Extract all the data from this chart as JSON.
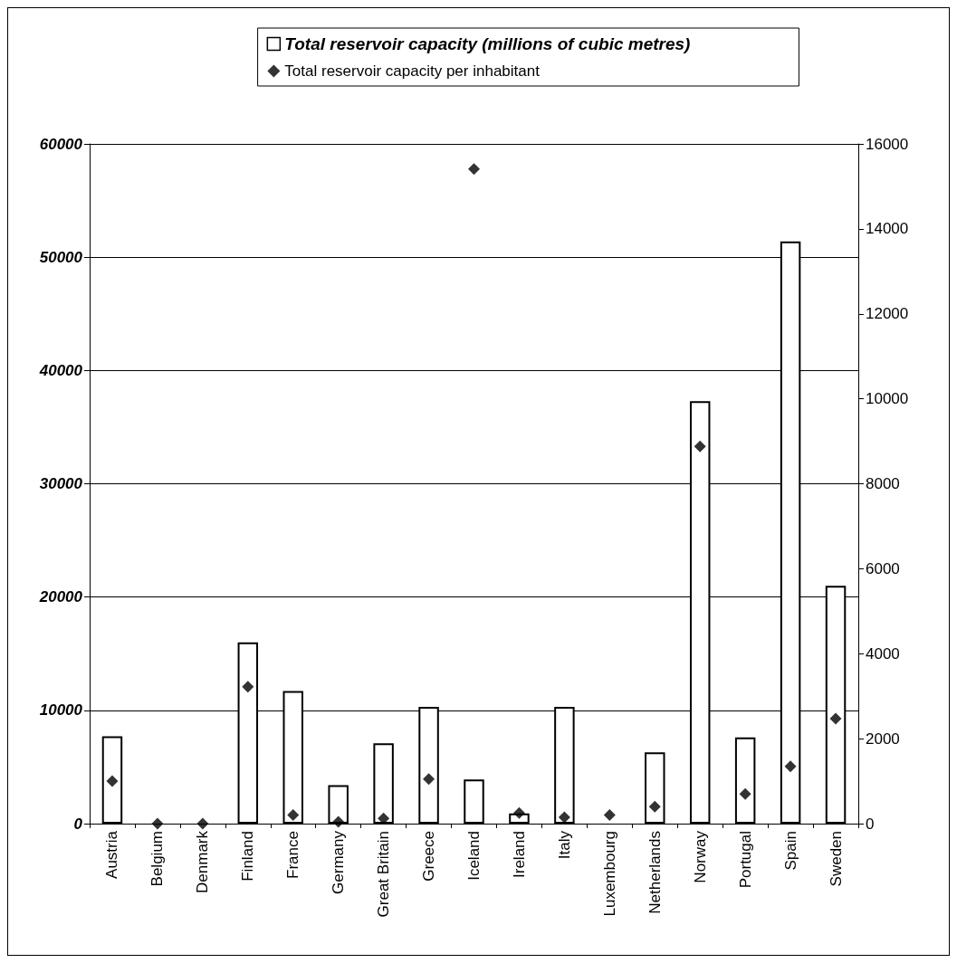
{
  "chart_data": {
    "type": "bar",
    "categories": [
      "Austria",
      "Belgium",
      "Denmark",
      "Finland",
      "France",
      "Germany",
      "Great Britain",
      "Greece",
      "Iceland",
      "Ireland",
      "Italy",
      "Luxembourg",
      "Netherlands",
      "Norway",
      "Portugal",
      "Spain",
      "Sweden"
    ],
    "series": [
      {
        "name": "Total reservoir capacity (millions of cubic metres)",
        "color": "#ffffff",
        "values": [
          7700,
          null,
          null,
          16000,
          11700,
          3400,
          7100,
          10300,
          3900,
          900,
          10300,
          null,
          6300,
          37300,
          7600,
          51400,
          21000
        ]
      },
      {
        "name": "Total reservoir capacity per inhabitant",
        "type": "scatter",
        "axis": "y2",
        "color": "#000000",
        "values": [
          1000,
          0,
          0,
          3220,
          200,
          40,
          120,
          1050,
          15410,
          250,
          150,
          200,
          400,
          8880,
          700,
          1350,
          2470
        ]
      }
    ],
    "ylim": [
      0,
      60000
    ],
    "yticks": [
      0,
      10000,
      20000,
      30000,
      40000,
      50000,
      60000
    ],
    "y2lim": [
      0,
      16000
    ],
    "y2ticks": [
      0,
      2000,
      4000,
      6000,
      8000,
      10000,
      12000,
      14000,
      16000
    ],
    "grid": "y",
    "legend": "top",
    "marker": "diamond"
  }
}
